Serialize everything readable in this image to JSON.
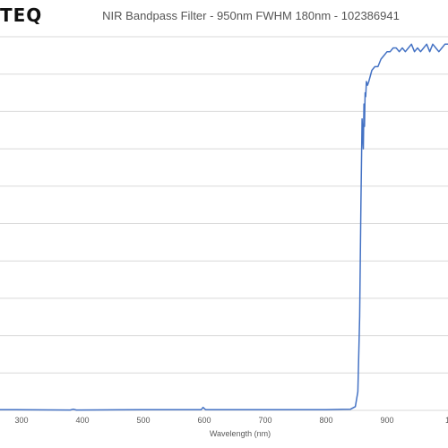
{
  "logo": {
    "text": "TEQ"
  },
  "chart_data": {
    "type": "line",
    "title": "NIR Bandpass Filter - 950nm FWHM 180nm - 102386941",
    "xlabel": "Wavelength (nm)",
    "ylabel": "",
    "xlim": [
      200,
      1000
    ],
    "ylim": [
      0,
      100
    ],
    "xticks": [
      300,
      400,
      500,
      600,
      700,
      800,
      900
    ],
    "xtick_labels": [
      "300",
      "400",
      "500",
      "600",
      "700",
      "800",
      "900"
    ],
    "edge_tick_label": "1",
    "yticks": [
      0,
      10,
      20,
      30,
      40,
      50,
      60,
      70,
      80,
      90,
      100
    ],
    "grid": "horizontal",
    "line_color": "#4472c4",
    "series": [
      {
        "x": [
          200,
          290,
          380,
          385,
          390,
          500,
          595,
          598,
          602,
          700,
          780,
          800,
          840,
          848,
          852,
          855,
          857,
          859,
          861,
          862,
          863,
          864,
          865,
          866,
          868,
          870,
          875,
          880,
          885,
          890,
          895,
          900,
          905,
          910,
          915,
          920,
          925,
          930,
          935,
          940,
          945,
          950,
          955,
          960,
          965,
          970,
          975,
          980,
          985,
          990,
          995,
          1000
        ],
        "y": [
          0.1,
          0.2,
          0.1,
          0.3,
          0.1,
          0.2,
          0.2,
          0.8,
          0.2,
          0.2,
          0.2,
          0.2,
          0.3,
          1.0,
          5,
          25,
          55,
          78,
          70,
          82,
          76,
          85,
          84,
          88,
          87,
          88,
          91,
          92,
          92,
          94,
          95,
          96,
          96,
          97,
          97,
          96,
          97,
          96,
          97,
          98,
          96,
          97,
          96,
          97,
          98,
          96,
          98,
          97,
          96,
          97,
          98,
          98
        ]
      }
    ]
  }
}
